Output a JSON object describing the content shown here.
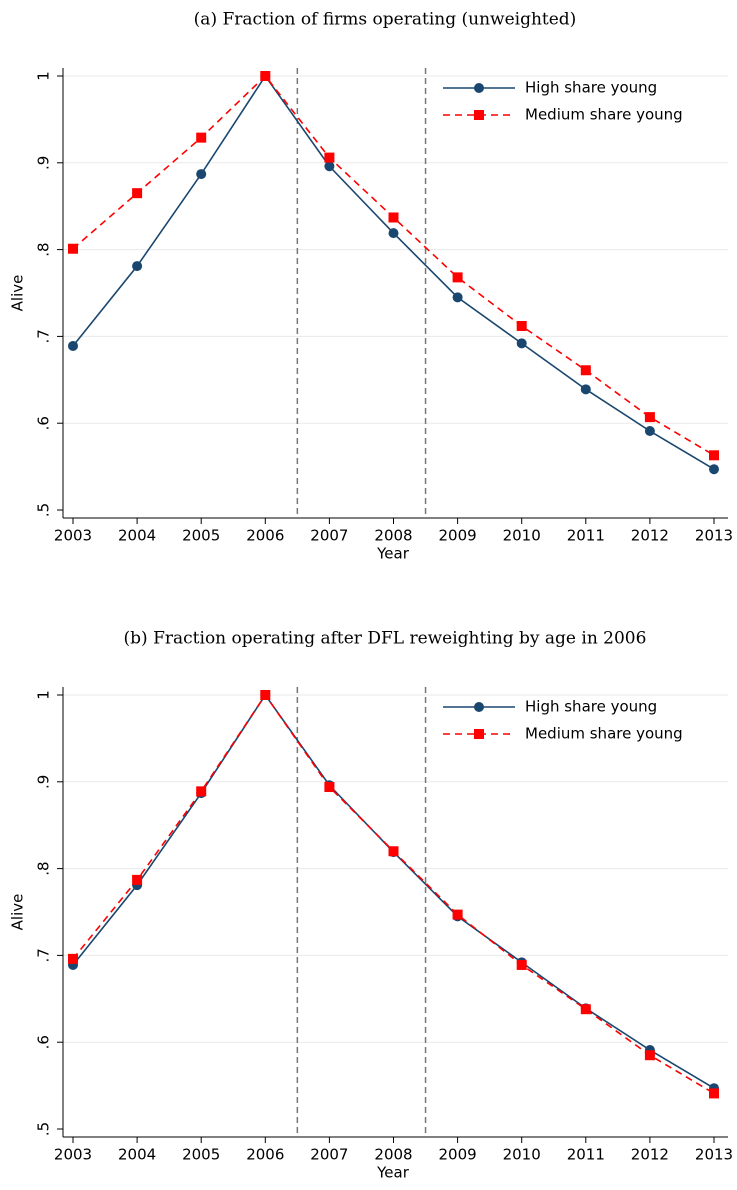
{
  "chart_data": [
    {
      "type": "line",
      "title": "(a) Fraction of firms operating (unweighted)",
      "xlabel": "Year",
      "ylabel": "Alive",
      "x": [
        2003,
        2004,
        2005,
        2006,
        2007,
        2008,
        2009,
        2010,
        2011,
        2012,
        2013
      ],
      "series": [
        {
          "name": "High share young",
          "color": "#1a476f",
          "marker": "circle",
          "dash": false,
          "values": [
            0.689,
            0.781,
            0.887,
            1,
            0.896,
            0.819,
            0.745,
            0.692,
            0.639,
            0.591,
            0.547
          ]
        },
        {
          "name": "Medium share young",
          "color": "#ff0000",
          "marker": "square",
          "dash": true,
          "values": [
            0.801,
            0.865,
            0.929,
            1,
            0.906,
            0.837,
            0.768,
            0.712,
            0.661,
            0.607,
            0.563
          ]
        }
      ],
      "xlim": [
        2003,
        2013
      ],
      "xticks": [
        2003,
        2004,
        2005,
        2006,
        2007,
        2008,
        2009,
        2010,
        2011,
        2012,
        2013
      ],
      "ylim": [
        0.5,
        1
      ],
      "yticks": [
        {
          "value": 0.5,
          "label": ".5"
        },
        {
          "value": 0.6,
          "label": ".6"
        },
        {
          "value": 0.7,
          "label": ".7"
        },
        {
          "value": 0.8,
          "label": ".8"
        },
        {
          "value": 0.9,
          "label": ".9"
        },
        1
      ],
      "vlines": [
        2006.5,
        2008.5
      ],
      "grid": true,
      "legend": "upper right"
    },
    {
      "type": "line",
      "title": "(b) Fraction operating after DFL reweighting by age in 2006",
      "xlabel": "Year",
      "ylabel": "Alive",
      "x": [
        2003,
        2004,
        2005,
        2006,
        2007,
        2008,
        2009,
        2010,
        2011,
        2012,
        2013
      ],
      "series": [
        {
          "name": "High share young",
          "color": "#1a476f",
          "marker": "circle",
          "dash": false,
          "values": [
            0.689,
            0.781,
            0.887,
            1,
            0.896,
            0.819,
            0.745,
            0.692,
            0.639,
            0.591,
            0.547
          ]
        },
        {
          "name": "Medium share young",
          "color": "#ff0000",
          "marker": "square",
          "dash": true,
          "values": [
            0.696,
            0.787,
            0.889,
            1,
            0.894,
            0.82,
            0.747,
            0.689,
            0.638,
            0.585,
            0.541
          ]
        }
      ],
      "xlim": [
        2003,
        2013
      ],
      "xticks": [
        2003,
        2004,
        2005,
        2006,
        2007,
        2008,
        2009,
        2010,
        2011,
        2012,
        2013
      ],
      "ylim": [
        0.5,
        1
      ],
      "yticks": [
        {
          "value": 0.5,
          "label": ".5"
        },
        {
          "value": 0.6,
          "label": ".6"
        },
        {
          "value": 0.7,
          "label": ".7"
        },
        {
          "value": 0.8,
          "label": ".8"
        },
        {
          "value": 0.9,
          "label": ".9"
        },
        1
      ],
      "vlines": [
        2006.5,
        2008.5
      ],
      "grid": true,
      "legend": "upper right"
    }
  ]
}
